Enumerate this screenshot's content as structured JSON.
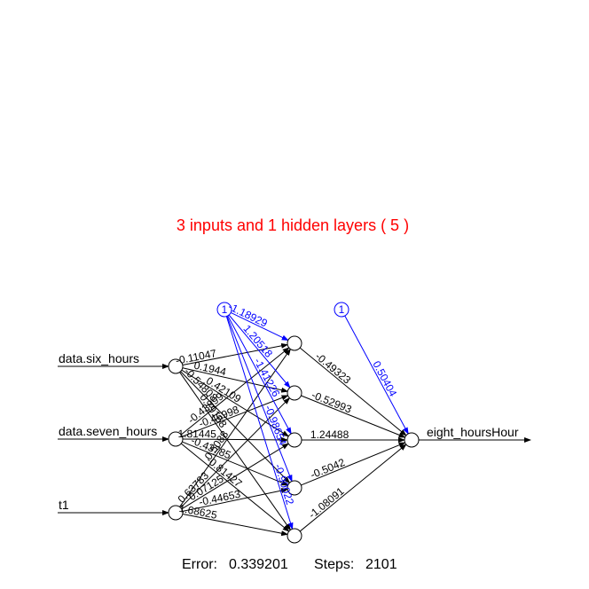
{
  "title": "3 inputs and 1 hidden layers ( 5 )",
  "footer": {
    "error_label": "Error:",
    "error_value": "0.339201",
    "steps_label": "Steps:",
    "steps_value": "2101"
  },
  "colors": {
    "title": "#ff0000",
    "bias": "#0000ff",
    "edge": "#000000",
    "background": "#ffffff"
  },
  "network": {
    "inputs": [
      "data.six_hours",
      "data.seven_hours",
      "t1"
    ],
    "output": "eight_hoursHour",
    "bias_label": "1",
    "input_hidden_weights": [
      [
        "-0.11047",
        "0.1944",
        "0.42109",
        "-0.54808",
        "0.79168"
      ],
      [
        "-0.43899",
        "-0.46998",
        "1.81445",
        "-0.43785",
        "-0.81427"
      ],
      [
        "0.5088",
        "0.63783",
        "0.07125",
        "-0.44653",
        "1.68625"
      ]
    ],
    "hidden_bias_weights": [
      "-1.18929",
      "1.20518",
      "-1.41226",
      "-0.98654",
      "-0.90022"
    ],
    "hidden_output_weights": [
      "-0.49323",
      "-0.52993",
      "1.24488",
      "-0.5042",
      "-1.08091"
    ],
    "output_bias_weight": "0.50404"
  }
}
